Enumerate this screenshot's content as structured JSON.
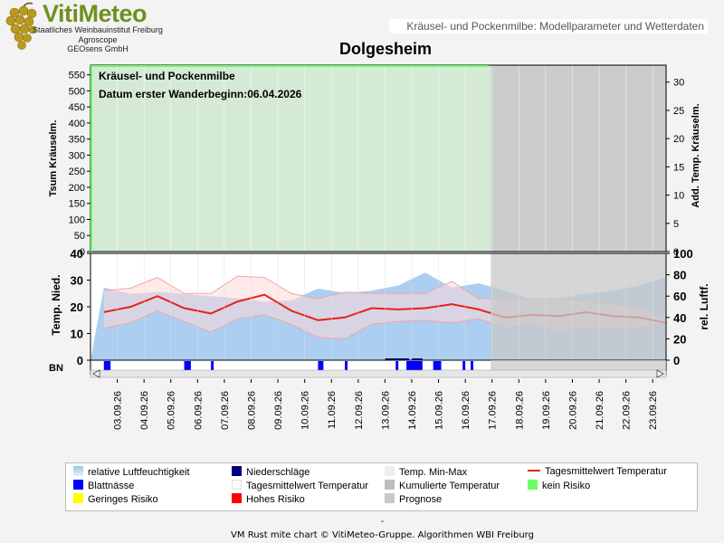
{
  "header": {
    "logo_text": "VitiMeteo",
    "org_lines": [
      "Staatliches Weinbauinstitut Freiburg",
      "Agroscope",
      "GEOsens GmbH"
    ],
    "subtitle": "Kräusel- und Pockenmilbe: Modellparameter und Wetterdaten",
    "location": "Dolgesheim"
  },
  "colors": {
    "no_risk": "#66ff66",
    "low_risk": "#ffff00",
    "high_risk": "#ff0000",
    "forecast": "#c8c8c8",
    "temp_line": "#e8221a",
    "humidity": "#9cc6ee",
    "leaf_wetness": "#0000ff",
    "precip": "#000080"
  },
  "chart_data": [
    {
      "type": "area",
      "annotation_lines": [
        "Kräusel- und Pockenmilbe",
        "Datum  erster Wanderbeginn:06.04.2026"
      ],
      "ylabel_left": "Tsum Kräuselm.",
      "ylabel_right": "Add. Temp. Kräuselm.",
      "ylim_left": [
        0,
        580
      ],
      "ylim_right": [
        0,
        33
      ],
      "yticks_left": [
        "0",
        "50",
        "100",
        "150",
        "200",
        "250",
        "300",
        "350",
        "400",
        "450",
        "500",
        "550"
      ],
      "yticks_right": [
        "0",
        "5",
        "10",
        "15",
        "20",
        "25",
        "30"
      ],
      "background_risk": "kein Risiko",
      "forecast_from": "17.09.26"
    },
    {
      "type": "line",
      "ylabel_left": "Temp. Nied.",
      "ylabel_right": "rel. Luftf.",
      "ylim_left": [
        0,
        40
      ],
      "ylim_right": [
        0,
        100
      ],
      "yticks_left": [
        "0",
        "10",
        "20",
        "30",
        "40"
      ],
      "yticks_right": [
        "0",
        "20",
        "40",
        "60",
        "80",
        "100"
      ],
      "categories": [
        "03.09.26",
        "04.09.26",
        "05.09.26",
        "06.09.26",
        "07.09.26",
        "08.09.26",
        "09.09.26",
        "10.09.26",
        "11.09.26",
        "12.09.26",
        "13.09.26",
        "14.09.26",
        "15.09.26",
        "16.09.26",
        "17.09.26",
        "18.09.26",
        "19.09.26",
        "20.09.26",
        "21.09.26",
        "22.09.26",
        "23.09.26"
      ],
      "x": [
        2.5,
        3.5,
        4.5,
        5.5,
        6.5,
        7.5,
        8.5,
        9.5,
        10.5,
        11.5,
        12.5,
        13.5,
        14.5,
        15.5,
        16.5,
        17.5,
        18.5,
        19.5,
        20.5,
        21.5,
        22.5,
        23.5
      ],
      "series": [
        {
          "name": "Tagesmittelwert Temperatur",
          "values": [
            18,
            20,
            24,
            19.5,
            17.5,
            22,
            24.5,
            18.5,
            15,
            16,
            19.5,
            19,
            19.5,
            21,
            19,
            16,
            17,
            16.5,
            18,
            16.5,
            16,
            14
          ]
        },
        {
          "name": "Temp. Min-Max (max)",
          "values": [
            26,
            27,
            31,
            25,
            25,
            31.5,
            31,
            25,
            23,
            25.5,
            25,
            25,
            25,
            29.5,
            23,
            23,
            23,
            23,
            22,
            21,
            20,
            15
          ]
        },
        {
          "name": "Temp. Min-Max (min)",
          "values": [
            12,
            14,
            18.5,
            14.5,
            10.5,
            15.5,
            17,
            13.5,
            8.5,
            8,
            13.5,
            14.5,
            15,
            14,
            15.5,
            12,
            13,
            11,
            12,
            11.5,
            12,
            14
          ]
        },
        {
          "name": "relative Luftfeuchtigkeit",
          "values": [
            68,
            62,
            64,
            62,
            60,
            58,
            55,
            56,
            67,
            63,
            65,
            70,
            82,
            68,
            72,
            65,
            57,
            58,
            62,
            65,
            70,
            78
          ]
        }
      ],
      "blattnaesse_bars": [
        [
          2.5,
          2.75
        ],
        [
          5.5,
          5.75
        ],
        [
          6.5,
          6.6
        ],
        [
          10.5,
          10.7
        ],
        [
          11.5,
          11.6
        ],
        [
          13.4,
          13.5
        ],
        [
          13.8,
          14.4
        ],
        [
          14.8,
          15.1
        ],
        [
          15.9,
          16.0
        ],
        [
          16.2,
          16.3
        ]
      ],
      "niederschlag_bars": [
        [
          13.0,
          13.9
        ],
        [
          14.0,
          14.4
        ]
      ],
      "bn_label": "BN",
      "forecast_from": "17.09.26"
    }
  ],
  "legend": [
    {
      "label": "relative Luftfeuchtigkeit",
      "swatch": "humidity"
    },
    {
      "label": "Niederschläge",
      "swatch": "precip"
    },
    {
      "label": "Temp. Min-Max",
      "swatch": "minmax"
    },
    {
      "label": "Tagesmittelwert Temperatur",
      "swatch": "line"
    },
    {
      "label": "Blattnässe",
      "swatch": "leaf"
    },
    {
      "label": "Tagesmittelwert Temperatur",
      "swatch": "white"
    },
    {
      "label": "Kumulierte Temperatur",
      "swatch": "cumul"
    },
    {
      "label": "kein Risiko",
      "swatch": "norisk"
    },
    {
      "label": "Geringes Risiko",
      "swatch": "low"
    },
    {
      "label": "Hohes Risiko",
      "swatch": "high"
    },
    {
      "label": "Prognose",
      "swatch": "forecast"
    }
  ],
  "footer": {
    "dash": "-",
    "credit": "VM Rust mite chart © VitiMeteo-Gruppe. Algorithmen WBI Freiburg"
  }
}
